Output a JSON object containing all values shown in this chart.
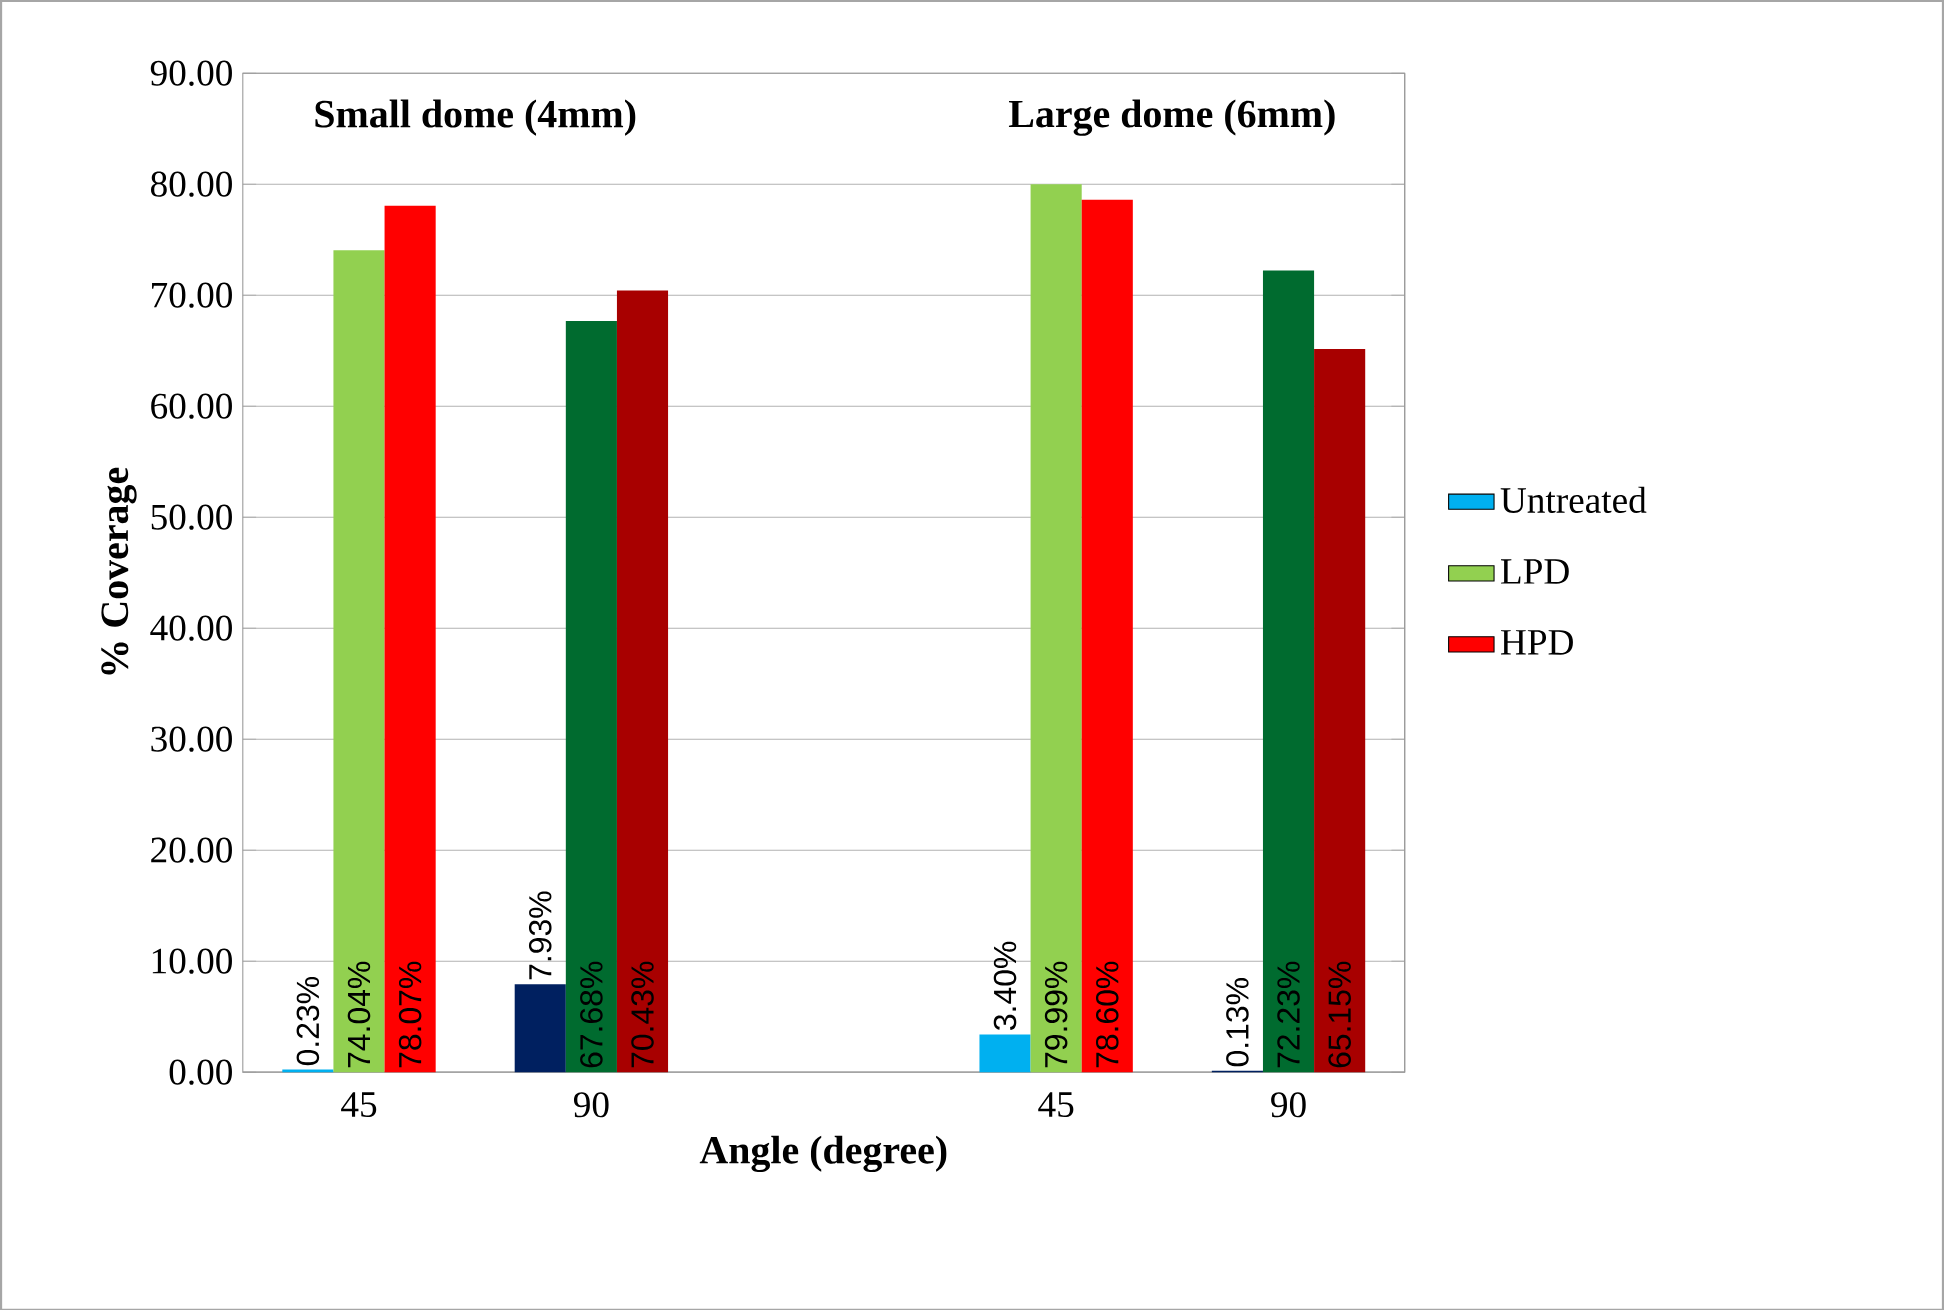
{
  "chart_data": {
    "type": "bar",
    "xlabel": "Angle (degree)",
    "ylabel": "% Coverage",
    "annotations": [
      "Small dome (4mm)",
      "Large dome (6mm)"
    ],
    "categories": [
      "45",
      "90",
      null,
      "45",
      "90"
    ],
    "series": [
      {
        "name": "Untreated",
        "color": "#00b0f0",
        "colors": [
          "#00b0f0",
          "#002060",
          null,
          "#00b0f0",
          "#002060"
        ],
        "values": [
          0.23,
          7.93,
          null,
          3.4,
          0.13
        ],
        "value_labels": [
          "0.23%",
          "7.93%",
          null,
          "3.40%",
          "0.13%"
        ]
      },
      {
        "name": "LPD",
        "color": "#92d050",
        "colors": [
          "#92d050",
          "#006b2f",
          null,
          "#92d050",
          "#006b2f"
        ],
        "values": [
          74.04,
          67.68,
          null,
          79.99,
          72.23
        ],
        "value_labels": [
          "74.04%",
          "67.68%",
          null,
          "79.99%",
          "72.23%"
        ]
      },
      {
        "name": "HPD",
        "color": "#ff0000",
        "colors": [
          "#ff0000",
          "#a80000",
          null,
          "#ff0000",
          "#a80000"
        ],
        "values": [
          78.07,
          70.43,
          null,
          78.6,
          65.15
        ],
        "value_labels": [
          "78.07%",
          "70.43%",
          null,
          "78.60%",
          "65.15%"
        ]
      }
    ],
    "ylim": [
      0,
      90
    ],
    "yticks": [
      {
        "value": 0,
        "label": "0.00"
      },
      {
        "value": 10,
        "label": "10.00"
      },
      {
        "value": 20,
        "label": "20.00"
      },
      {
        "value": 30,
        "label": "30.00"
      },
      {
        "value": 40,
        "label": "40.00"
      },
      {
        "value": 50,
        "label": "50.00"
      },
      {
        "value": 60,
        "label": "60.00"
      },
      {
        "value": 70,
        "label": "70.00"
      },
      {
        "value": 80,
        "label": "80.00"
      },
      {
        "value": 90,
        "label": "90.00"
      }
    ],
    "grid": "y",
    "legend": "right"
  }
}
